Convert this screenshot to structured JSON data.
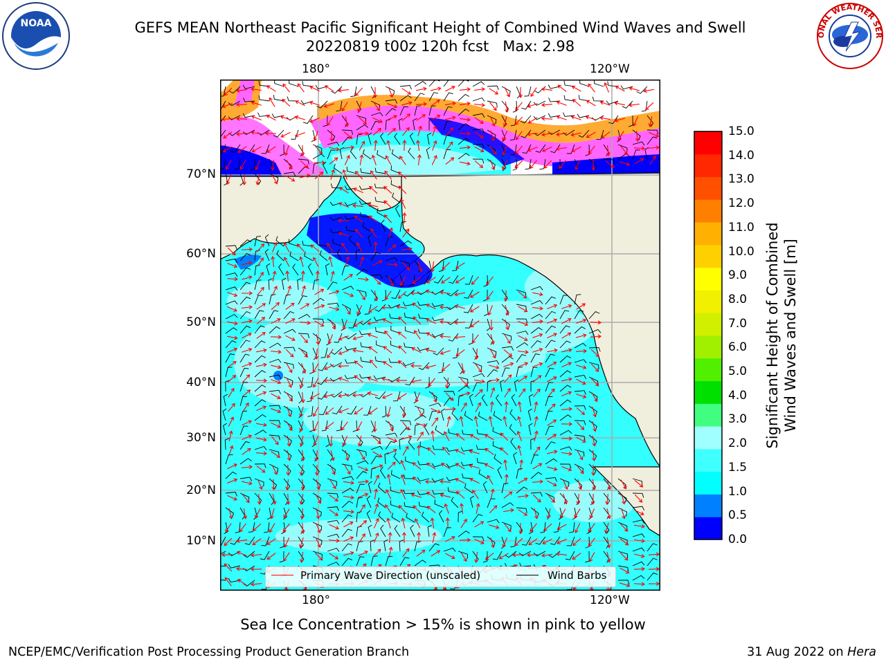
{
  "title": {
    "line1": "GEFS MEAN Northeast Pacific Significant Height of Combined Wind Waves and Swell",
    "line2": "20220819 t00z 120h fcst   Max: 2.98"
  },
  "logos": {
    "left": {
      "icon": "noaa-logo",
      "text": "NOAA"
    },
    "right": {
      "icon": "nws-logo",
      "text": "NATIONAL WEATHER SERVICE"
    }
  },
  "map": {
    "top_axis": [
      "180°",
      "120°W"
    ],
    "bottom_axis": [
      "180°",
      "120°W"
    ],
    "lat_labels": [
      "70°N",
      "60°N",
      "50°N",
      "40°N",
      "30°N",
      "20°N",
      "10°N"
    ],
    "colors": {
      "land": "#f0eedc",
      "ocean_low": "#33ffff",
      "ocean_mid": "#9ffcfc",
      "coastal": "#0066ff",
      "ice_pink": "#ff66ff",
      "ice_orange": "#ffaa33",
      "grid": "#aaaaaa",
      "wave_arrow": "#ff0000",
      "wind_barb": "#000000"
    }
  },
  "legend": {
    "items": [
      {
        "label": "Primary Wave Direction (unscaled)",
        "color": "#ff0000"
      },
      {
        "label": "Wind Barbs",
        "color": "#000000"
      }
    ]
  },
  "colorbar": {
    "title_line1": "Significant Height of Combined",
    "title_line2": "Wind Waves and Swell [m]",
    "ticks": [
      "15.0",
      "14.0",
      "13.0",
      "12.0",
      "11.0",
      "10.0",
      "9.0",
      "8.0",
      "7.0",
      "6.0",
      "5.0",
      "4.0",
      "3.0",
      "2.0",
      "1.5",
      "1.0",
      "0.5",
      "0.0"
    ],
    "colors": [
      "#0000ff",
      "#0080ff",
      "#00ffff",
      "#40ffff",
      "#a0ffff",
      "#40ff80",
      "#00e000",
      "#50f000",
      "#a0f000",
      "#d0f000",
      "#f0f000",
      "#ffff00",
      "#ffd000",
      "#ffb000",
      "#ff8000",
      "#ff5000",
      "#ff2800",
      "#ff0000"
    ]
  },
  "footnote": "Sea Ice Concentration > 15% is shown in pink to yellow",
  "footer": {
    "left": "NCEP/EMC/Verification Post Processing Product Generation Branch",
    "right_date": "31 Aug 2022 on ",
    "right_host": "Hera"
  }
}
